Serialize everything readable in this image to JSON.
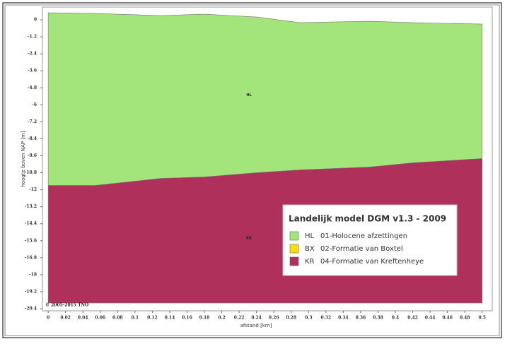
{
  "chart_data": {
    "type": "layers",
    "y_label": "hoogte boven NAP [m]",
    "x_label": "afstand [km]",
    "copyright": "© 2005-2015 TNO",
    "legend_title": "Landelijk model DGM v1.3 - 2009",
    "x": [
      0,
      0.054,
      0.13,
      0.18,
      0.24,
      0.29,
      0.37,
      0.42,
      0.5
    ],
    "xlim": [
      -0.005,
      0.51
    ],
    "ylim": [
      -20.4,
      0.9
    ],
    "xticks": [
      0,
      0.02,
      0.04,
      0.06,
      0.08,
      0.1,
      0.12,
      0.14,
      0.16,
      0.18,
      0.2,
      0.22,
      0.24,
      0.26,
      0.28,
      0.3,
      0.32,
      0.34,
      0.36,
      0.38,
      0.4,
      0.42,
      0.44,
      0.46,
      0.48,
      0.5
    ],
    "yticks": [
      0,
      -1.2,
      -2.4,
      -3.6,
      -4.8,
      -6,
      -7.2,
      -8.4,
      -9.6,
      -10.8,
      -12,
      -13.2,
      -14.4,
      -15.6,
      -16.8,
      -18,
      -19.2,
      -20.4
    ],
    "layers": [
      {
        "code": "HL",
        "name": "01-Holocene afzettingen",
        "color": "#a3e57a",
        "top": [
          0.5,
          0.45,
          0.3,
          0.4,
          0.2,
          -0.2,
          -0.1,
          -0.2,
          -0.3
        ],
        "bottom": [
          -11.7,
          -11.7,
          -11.2,
          -11.1,
          -10.8,
          -10.6,
          -10.4,
          -10.1,
          -9.8
        ]
      },
      {
        "code": "BX",
        "name": "02-Formatie van Boxtel",
        "color": "#ffe000"
      },
      {
        "code": "KR",
        "name": "04-Formatie van Kreftenheye",
        "color": "#b0305c",
        "top": [
          -11.7,
          -11.7,
          -11.2,
          -11.1,
          -10.8,
          -10.6,
          -10.4,
          -10.1,
          -9.8
        ],
        "bottom": [
          -20,
          -20,
          -20,
          -20,
          -20,
          -20,
          -20,
          -20,
          -20
        ]
      }
    ]
  }
}
